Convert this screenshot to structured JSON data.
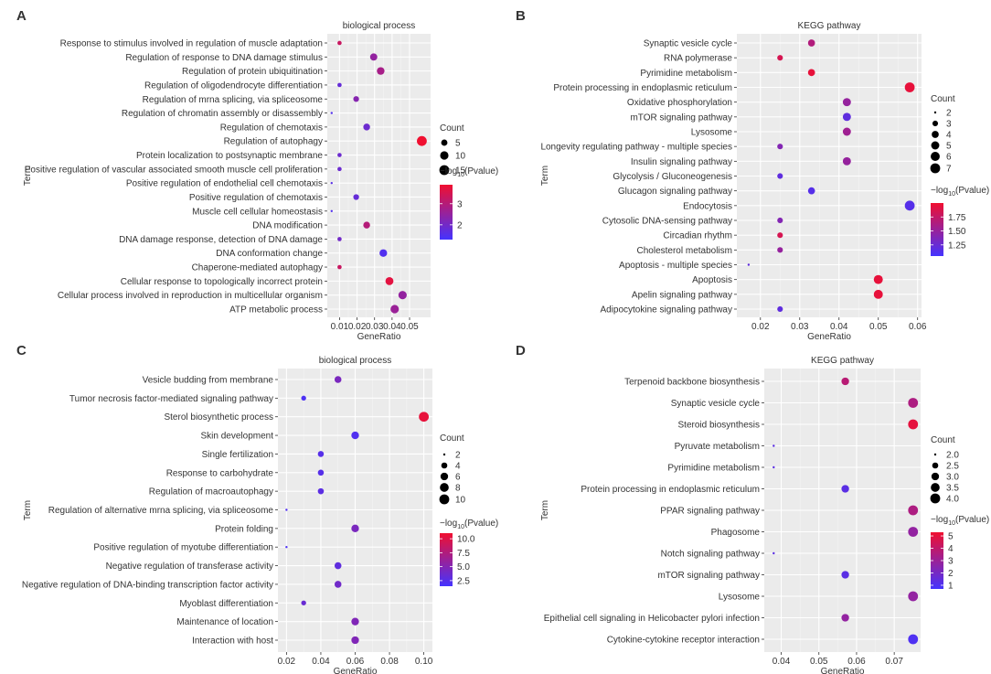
{
  "chart_data": [
    {
      "panel": "A",
      "type": "scatter",
      "title": "biological process",
      "xlabel": "GeneRatio",
      "ylabel": "Term",
      "xlim": [
        0.003,
        0.062
      ],
      "xticks": [
        0.01,
        0.02,
        0.03,
        0.04,
        0.05
      ],
      "xtick_labels": [
        "0.01",
        "0.02",
        "0.03",
        "0.04",
        "0.05"
      ],
      "terms": [
        "Response to stimulus involved in regulation of muscle adaptation",
        "Regulation of response to DNA damage stimulus",
        "Regulation of protein ubiquitination",
        "Regulation of oligodendrocyte differentiation",
        "Regulation of mrna splicing, via spliceosome",
        "Regulation of chromatin assembly or disassembly",
        "Regulation of chemotaxis",
        "Regulation of autophagy",
        "Protein localization to postsynaptic membrane",
        "Positive regulation of vascular associated smooth muscle cell proliferation",
        "Positive regulation of endothelial cell chemotaxis",
        "Positive regulation of chemotaxis",
        "Muscle cell cellular homeostasis",
        "DNA modification",
        "DNA damage response, detection of DNA damage",
        "DNA conformation change",
        "Chaperone-mediated autophagy",
        "Cellular response to topologically incorrect protein",
        "Cellular process involved in reproduction in multicellular organism",
        "ATP metabolic process"
      ],
      "x": [
        0.01,
        0.0295,
        0.0335,
        0.01,
        0.0195,
        0.0055,
        0.0255,
        0.057,
        0.01,
        0.01,
        0.0055,
        0.0195,
        0.0055,
        0.0255,
        0.01,
        0.035,
        0.01,
        0.0385,
        0.046,
        0.0415
      ],
      "count": [
        2,
        7,
        8,
        2,
        4,
        1,
        6,
        15,
        2,
        2,
        1,
        4,
        1,
        6,
        2,
        8,
        2,
        9,
        10,
        10
      ],
      "pvalue": [
        3.3,
        2.5,
        2.8,
        1.8,
        2.3,
        1.5,
        1.9,
        3.9,
        1.9,
        1.9,
        1.6,
        1.8,
        1.5,
        3.0,
        2.0,
        1.5,
        3.3,
        3.7,
        2.5,
        2.6
      ],
      "legend_count": {
        "title": "Count",
        "values": [
          5,
          10,
          15
        ],
        "labels": [
          "5",
          "10",
          "15"
        ]
      },
      "legend_color": {
        "title_main": "−log",
        "title_sub": "10",
        "title_rest": "(Pvalue)",
        "min": 1.3,
        "max": 3.9,
        "ticks": [
          3,
          2
        ],
        "tick_labels": [
          "3",
          "2"
        ]
      }
    },
    {
      "panel": "B",
      "type": "scatter",
      "title": "KEGG pathway",
      "xlabel": "GeneRatio",
      "ylabel": "Term",
      "xlim": [
        0.014,
        0.061
      ],
      "xticks": [
        0.02,
        0.03,
        0.04,
        0.05,
        0.06
      ],
      "xtick_labels": [
        "0.02",
        "0.03",
        "0.04",
        "0.05",
        "0.06"
      ],
      "terms": [
        "Synaptic vesicle cycle",
        "RNA polymerase",
        "Pyrimidine metabolism",
        "Protein processing in endoplasmic reticulum",
        "Oxidative phosphorylation",
        "mTOR signaling pathway",
        "Lysosome",
        "Longevity regulating pathway - multiple species",
        "Insulin signaling pathway",
        "Glycolysis / Gluconeogenesis",
        "Glucagon signaling pathway",
        "Endocytosis",
        "Cytosolic DNA-sensing pathway",
        "Circadian rhythm",
        "Cholesterol metabolism",
        "Apoptosis - multiple species",
        "Apoptosis",
        "Apelin signaling pathway",
        "Adipocytokine signaling pathway"
      ],
      "x": [
        0.033,
        0.025,
        0.033,
        0.058,
        0.042,
        0.042,
        0.042,
        0.025,
        0.042,
        0.025,
        0.033,
        0.058,
        0.025,
        0.025,
        0.025,
        0.017,
        0.05,
        0.05,
        0.025
      ],
      "count": [
        4,
        3,
        4,
        7,
        5,
        5,
        5,
        3,
        5,
        3,
        4,
        7,
        3,
        3,
        3,
        2,
        6,
        6,
        3
      ],
      "pvalue": [
        1.65,
        1.85,
        1.95,
        1.95,
        1.5,
        1.2,
        1.55,
        1.4,
        1.5,
        1.2,
        1.15,
        1.15,
        1.4,
        1.85,
        1.5,
        1.2,
        1.95,
        1.95,
        1.2
      ],
      "legend_count": {
        "title": "Count",
        "values": [
          2,
          3,
          4,
          5,
          6,
          7
        ],
        "labels": [
          "2",
          "3",
          "4",
          "5",
          "6",
          "7"
        ]
      },
      "legend_color": {
        "title_main": "−log",
        "title_sub": "10",
        "title_rest": "(Pvalue)",
        "min": 1.05,
        "max": 2.0,
        "ticks": [
          1.75,
          1.5,
          1.25
        ],
        "tick_labels": [
          "1.75",
          "1.50",
          "1.25"
        ]
      }
    },
    {
      "panel": "C",
      "type": "scatter",
      "title": "biological process",
      "xlabel": "GeneRatio",
      "ylabel": "Term",
      "xlim": [
        0.015,
        0.105
      ],
      "xticks": [
        0.02,
        0.04,
        0.06,
        0.08,
        0.1
      ],
      "xtick_labels": [
        "0.02",
        "0.04",
        "0.06",
        "0.08",
        "0.10"
      ],
      "terms": [
        "Vesicle budding from membrane",
        "Tumor necrosis factor-mediated signaling pathway",
        "Sterol biosynthetic process",
        "Skin development",
        "Single fertilization",
        "Response to carbohydrate",
        "Regulation of macroautophagy",
        "Regulation of alternative mrna splicing, via spliceosome",
        "Protein folding",
        "Positive regulation of myotube differentiation",
        "Negative regulation of transferase activity",
        "Negative regulation of DNA-binding transcription factor activity",
        "Myoblast differentiation",
        "Maintenance of location",
        "Interaction with host"
      ],
      "x": [
        0.05,
        0.03,
        0.1,
        0.06,
        0.04,
        0.04,
        0.04,
        0.02,
        0.06,
        0.02,
        0.05,
        0.05,
        0.03,
        0.06,
        0.06
      ],
      "count": [
        5,
        3,
        10,
        6,
        4,
        4,
        4,
        2,
        6,
        2,
        5,
        5,
        3,
        6,
        6
      ],
      "pvalue": [
        4.5,
        2.0,
        10.5,
        2.2,
        2.5,
        2.5,
        2.8,
        2.2,
        4.5,
        2.0,
        3.0,
        4.0,
        3.5,
        4.8,
        4.8
      ],
      "legend_count": {
        "title": "Count",
        "values": [
          2,
          4,
          6,
          8,
          10
        ],
        "labels": [
          "2",
          "4",
          "6",
          "8",
          "10"
        ]
      },
      "legend_color": {
        "title_main": "−log",
        "title_sub": "10",
        "title_rest": "(Pvalue)",
        "min": 1.5,
        "max": 11.0,
        "ticks": [
          10.0,
          7.5,
          5.0,
          2.5
        ],
        "tick_labels": [
          "10.0",
          "7.5",
          "5.0",
          "2.5"
        ]
      }
    },
    {
      "panel": "D",
      "type": "scatter",
      "title": "KEGG pathway",
      "xlabel": "GeneRatio",
      "ylabel": "Term",
      "xlim": [
        0.0355,
        0.077
      ],
      "xticks": [
        0.04,
        0.05,
        0.06,
        0.07
      ],
      "xtick_labels": [
        "0.04",
        "0.05",
        "0.06",
        "0.07"
      ],
      "terms": [
        "Terpenoid backbone biosynthesis",
        "Synaptic vesicle cycle",
        "Steroid biosynthesis",
        "Pyruvate metabolism",
        "Pyrimidine metabolism",
        "Protein processing in endoplasmic reticulum",
        "PPAR signaling pathway",
        "Phagosome",
        "Notch signaling pathway",
        "mTOR signaling pathway",
        "Lysosome",
        "Epithelial cell signaling in Helicobacter pylori infection",
        "Cytokine-cytokine receptor interaction"
      ],
      "x": [
        0.057,
        0.075,
        0.075,
        0.038,
        0.038,
        0.057,
        0.075,
        0.075,
        0.038,
        0.057,
        0.075,
        0.057,
        0.075
      ],
      "count": [
        3,
        4,
        4,
        2,
        2,
        3,
        4,
        4,
        2,
        3,
        4,
        3,
        4
      ],
      "pvalue": [
        3.8,
        3.5,
        5.0,
        1.3,
        1.3,
        1.3,
        3.5,
        2.8,
        1.3,
        1.3,
        2.8,
        2.8,
        1.0
      ],
      "legend_count": {
        "title": "Count",
        "values": [
          2.0,
          2.5,
          3.0,
          3.5,
          4.0
        ],
        "labels": [
          "2.0",
          "2.5",
          "3.0",
          "3.5",
          "4.0"
        ]
      },
      "legend_color": {
        "title_main": "−log",
        "title_sub": "10",
        "title_rest": "(Pvalue)",
        "min": 0.7,
        "max": 5.3,
        "ticks": [
          5,
          4,
          3,
          2,
          1
        ],
        "tick_labels": [
          "5",
          "4",
          "3",
          "2",
          "1"
        ]
      }
    }
  ]
}
